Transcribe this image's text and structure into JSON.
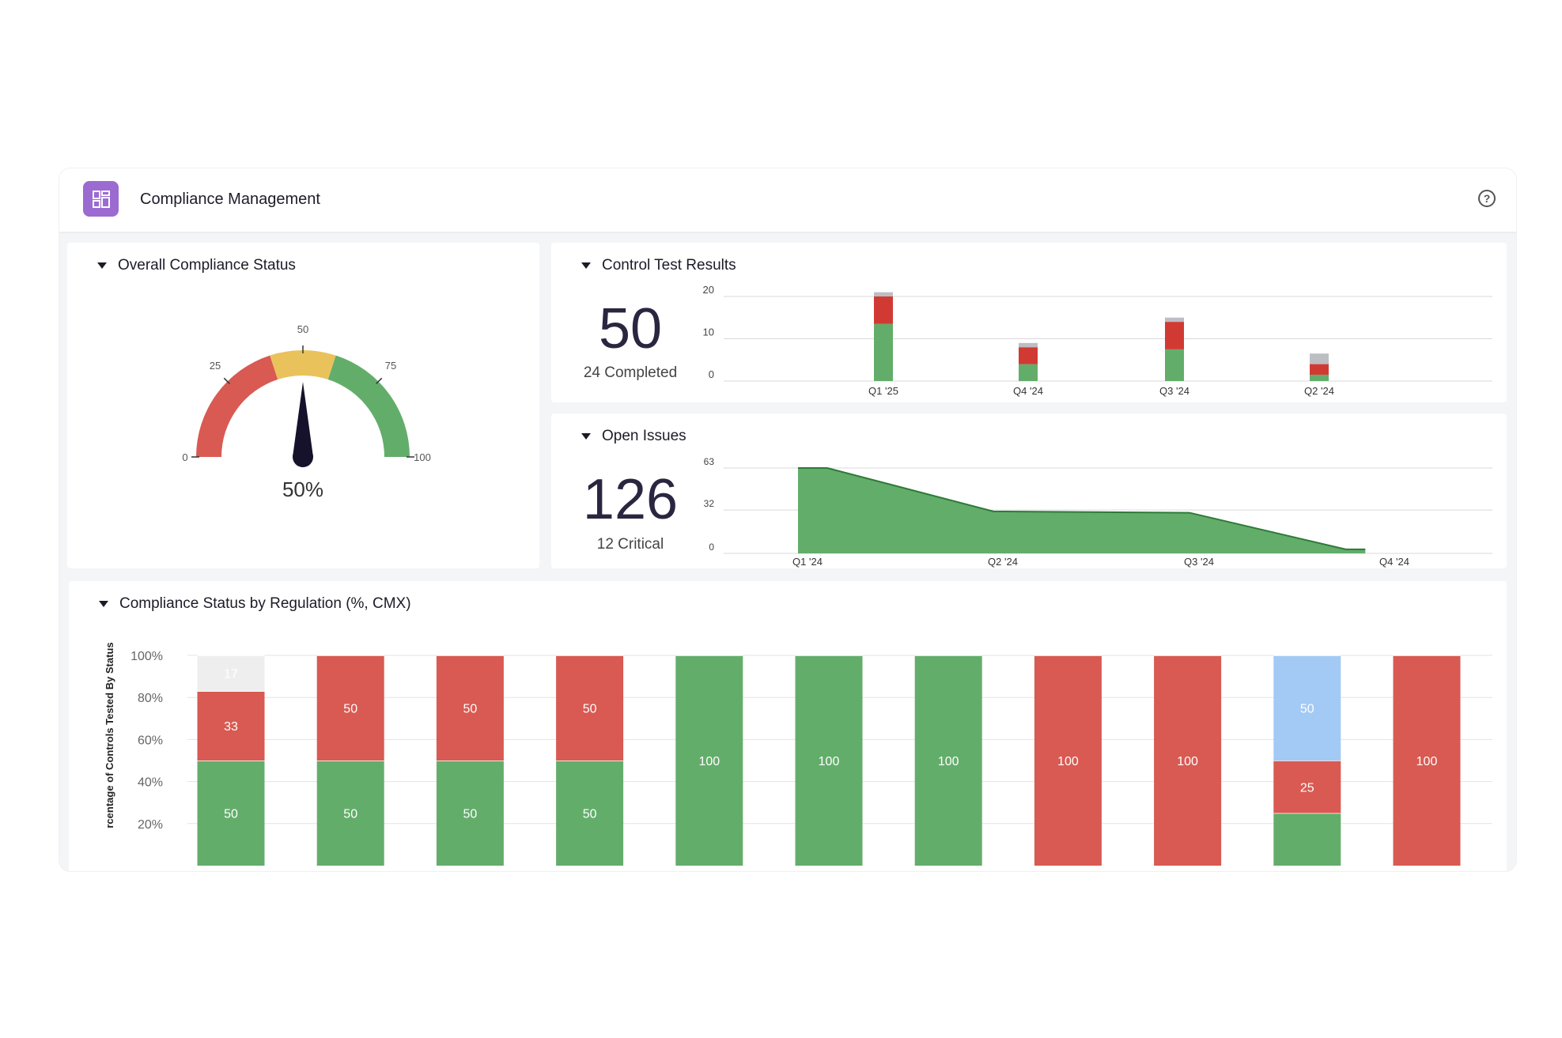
{
  "app": {
    "title": "Compliance Management",
    "icon": "dashboard-grid-icon",
    "accent": "#9b6bd1"
  },
  "help": {
    "icon": "help-circle-icon",
    "glyph": "?"
  },
  "colors": {
    "green": "#63ad6b",
    "red": "#d85a52",
    "yellow": "#eac25b",
    "gray": "#a9a9b2",
    "lightgray": "#eeeeee",
    "blue": "#a3c9f5"
  },
  "overall": {
    "title": "Overall Compliance Status",
    "value": 50,
    "value_label": "50%",
    "ticks": [
      "0",
      "25",
      "50",
      "75",
      "100"
    ]
  },
  "control_tests": {
    "title": "Control Test Results",
    "big": "50",
    "sub": "24 Completed",
    "chart_data": {
      "type": "bar",
      "categories": [
        "Q1 '25",
        "Q4 '24",
        "Q3 '24",
        "Q2 '24"
      ],
      "yticks": [
        "20",
        "10",
        "0"
      ],
      "ylim": [
        0,
        20
      ],
      "series": [
        {
          "values": [
            13.5,
            4,
            7.5,
            1.5
          ],
          "color": "#63ad6b"
        },
        {
          "values": [
            6.5,
            4,
            6.5,
            2.5
          ],
          "color": "#d13a33"
        },
        {
          "values": [
            1,
            1,
            1,
            2.5
          ],
          "color": "#bdbdc4"
        }
      ]
    }
  },
  "open_issues": {
    "title": "Open Issues",
    "big": "126",
    "sub": "12 Critical",
    "chart_data": {
      "type": "area",
      "categories": [
        "Q1 '24",
        "Q2 '24",
        "Q3 '24",
        "Q4 '24"
      ],
      "yticks": [
        "63",
        "32",
        "0"
      ],
      "ylim": [
        0,
        63
      ],
      "points": [
        [
          0,
          63
        ],
        [
          0.15,
          63
        ],
        [
          1,
          31
        ],
        [
          2,
          30
        ],
        [
          2.8,
          3
        ],
        [
          2.9,
          3
        ]
      ]
    }
  },
  "by_regulation": {
    "title": "Compliance Status by Regulation (%, CMX)",
    "chart_data": {
      "type": "bar",
      "ylabel": "rcentage of Controls Tested By Status",
      "yticks": [
        "100%",
        "80%",
        "60%",
        "40%",
        "20%"
      ],
      "ylim": [
        0,
        100
      ],
      "bars": [
        [
          {
            "v": 50,
            "c": "green",
            "label": "50"
          },
          {
            "v": 33,
            "c": "red",
            "label": "33"
          },
          {
            "v": 17,
            "c": "lightgray",
            "label": "17"
          }
        ],
        [
          {
            "v": 50,
            "c": "green",
            "label": "50"
          },
          {
            "v": 50,
            "c": "red",
            "label": "50"
          }
        ],
        [
          {
            "v": 50,
            "c": "green",
            "label": "50"
          },
          {
            "v": 50,
            "c": "red",
            "label": "50"
          }
        ],
        [
          {
            "v": 50,
            "c": "green",
            "label": "50"
          },
          {
            "v": 50,
            "c": "red",
            "label": "50"
          }
        ],
        [
          {
            "v": 100,
            "c": "green",
            "label": "100"
          }
        ],
        [
          {
            "v": 100,
            "c": "green",
            "label": "100"
          }
        ],
        [
          {
            "v": 100,
            "c": "green",
            "label": "100"
          }
        ],
        [
          {
            "v": 100,
            "c": "red",
            "label": "100"
          }
        ],
        [
          {
            "v": 100,
            "c": "red",
            "label": "100"
          }
        ],
        [
          {
            "v": 25,
            "c": "green",
            "label": ""
          },
          {
            "v": 25,
            "c": "red",
            "label": "25"
          },
          {
            "v": 50,
            "c": "blue",
            "label": "50"
          }
        ],
        [
          {
            "v": 100,
            "c": "red",
            "label": "100"
          }
        ]
      ]
    }
  }
}
